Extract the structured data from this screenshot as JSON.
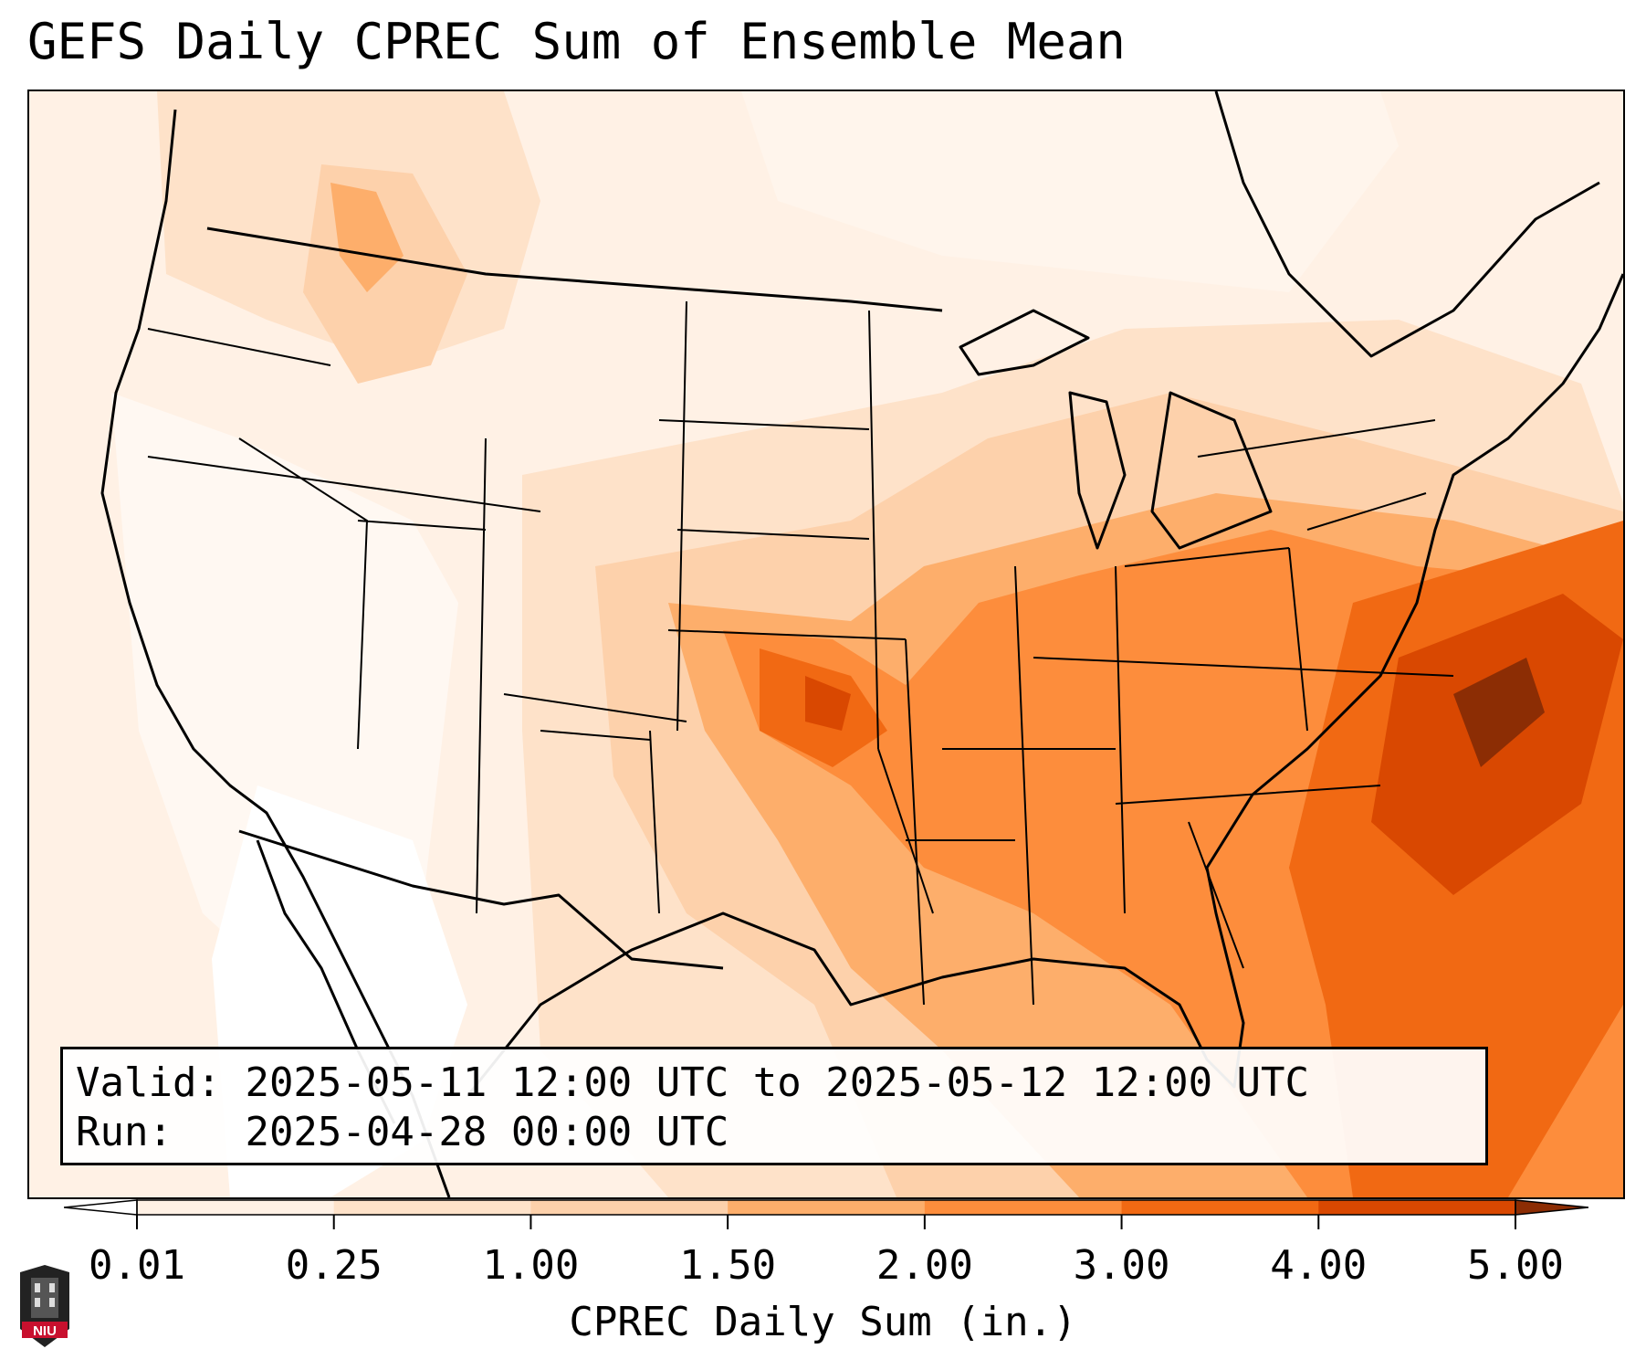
{
  "title": "GEFS Daily CPREC Sum of Ensemble Mean",
  "info": {
    "valid_label": "Valid:",
    "valid_value": "2025-05-11 12:00 UTC to 2025-05-12 12:00 UTC",
    "run_label": "Run:",
    "run_value": "2025-04-28 00:00 UTC"
  },
  "colorbar": {
    "label": "CPREC Daily Sum (in.)",
    "ticks": [
      "0.01",
      "0.25",
      "1.00",
      "1.50",
      "2.00",
      "3.00",
      "4.00",
      "5.00"
    ],
    "colors": [
      "#fff1e5",
      "#fee2c9",
      "#fdd1ab",
      "#fdae6b",
      "#fd8d3c",
      "#f16913",
      "#d94801"
    ],
    "under_color": "#ffffff",
    "over_color": "#8c2d04"
  },
  "logo": {
    "text": "NIU",
    "color": "#c8102e"
  }
}
